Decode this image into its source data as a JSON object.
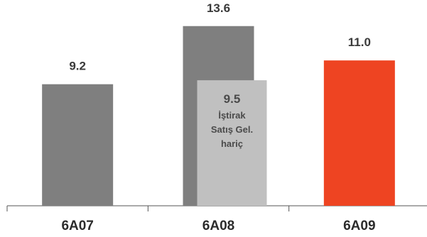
{
  "chart_data": {
    "type": "bar",
    "categories": [
      "6A07",
      "6A08",
      "6A09"
    ],
    "series": [
      {
        "values": [
          9.2,
          13.6,
          11.0
        ],
        "labels": [
          "9.2",
          "13.6",
          "11.0"
        ]
      }
    ],
    "overlay": {
      "category": "6A08",
      "value": 9.5,
      "value_label": "9.5",
      "text_lines": [
        "İştirak",
        "Satış Gel.",
        "hariç"
      ]
    },
    "ylim": [
      0,
      14.5
    ],
    "grid": false,
    "colors": {
      "bar": "#7f7f7f",
      "highlight": "#ee4422",
      "overlay": "#c0c0c0",
      "axis": "#555555"
    }
  }
}
